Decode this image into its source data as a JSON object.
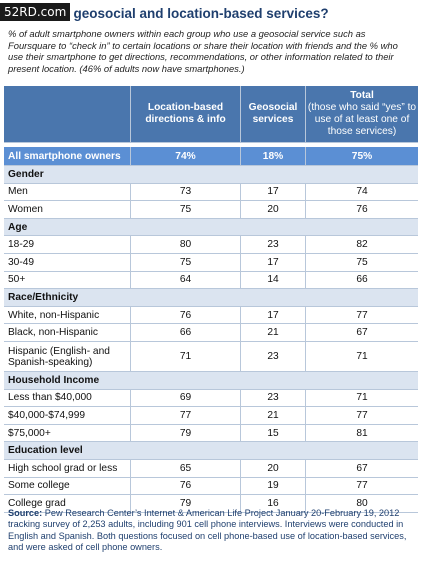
{
  "watermark": "52RD.com",
  "title": "Who uses geosocial and location-based services?",
  "subtitle": "% of adult smartphone owners within each group who use a geosocial service such as Foursquare to “check in” to certain locations or share their location with friends and the % who use their smartphone to get directions, recommendations, or other information related to their present location. (46% of adults now have smartphones.)",
  "table": {
    "header": [
      "",
      "Location-based directions & info",
      "Geosocial services",
      "Total",
      "(those who said “yes” to use of at least one of those services)"
    ],
    "all": [
      "All smartphone owners",
      "74%",
      "18%",
      "75%"
    ],
    "rows": [
      [
        "Gender"
      ],
      [
        "Men",
        73,
        17,
        74
      ],
      [
        "Women",
        75,
        20,
        76
      ],
      [
        "Age"
      ],
      [
        "18-29",
        80,
        23,
        82
      ],
      [
        "30-49",
        75,
        17,
        75
      ],
      [
        "50+",
        64,
        14,
        66
      ],
      [
        "Race/Ethnicity"
      ],
      [
        "White, non-Hispanic",
        76,
        17,
        77
      ],
      [
        "Black, non-Hispanic",
        66,
        21,
        67
      ],
      [
        "Hispanic (English- and Spanish-speaking)",
        71,
        23,
        71
      ],
      [
        "Household Income"
      ],
      [
        "Less than $40,000",
        69,
        23,
        71
      ],
      [
        "$40,000-$74,999",
        77,
        21,
        77
      ],
      [
        "$75,000+",
        79,
        15,
        81
      ],
      [
        "Education level"
      ],
      [
        "High school grad or less",
        65,
        20,
        67
      ],
      [
        "Some college",
        76,
        19,
        77
      ],
      [
        "College grad",
        79,
        16,
        80
      ]
    ]
  },
  "source_label": "Source:",
  "source": "Pew Research Center’s Internet & American Life Project January 20-February 19, 2012 tracking survey of 2,253 adults, including 901 cell phone interviews. Interviews were conducted in English and Spanish. Both questions focused on cell phone-based use of location-based services, and were asked of cell phone owners."
}
